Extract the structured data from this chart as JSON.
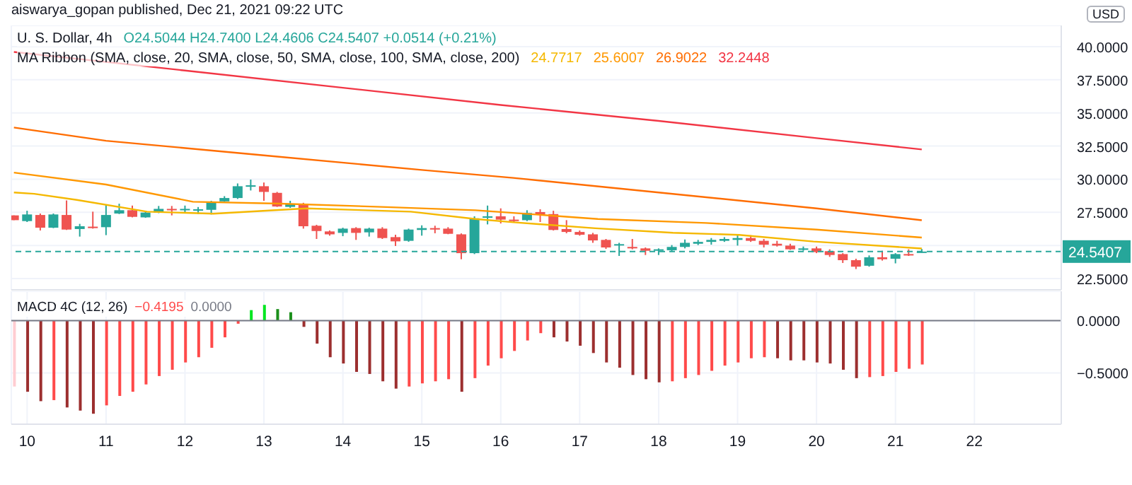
{
  "chart_data": [
    {
      "type": "candlestick",
      "title": "aiswarya_gopan published, Dec 21, 2021 09:22 UTC",
      "subtitle": "U. S. Dollar, 4h",
      "annotations": [
        "O24.5044 H24.7400 L24.4606 C24.5407 +0.0514 (+0.21%)",
        "MA Ribbon (SMA, close, 20, SMA, close, 50, SMA, close, 100, SMA, close, 200)",
        "24.7717",
        "25.6007",
        "26.9022",
        "32.2448",
        "USD"
      ],
      "x": [
        9.833,
        10,
        10.167,
        10.333,
        10.5,
        10.667,
        10.833,
        11,
        11.167,
        11.333,
        11.5,
        11.667,
        11.833,
        12,
        12.167,
        12.333,
        12.5,
        12.667,
        12.833,
        13,
        13.167,
        13.333,
        13.5,
        13.667,
        13.833,
        14,
        14.167,
        14.333,
        14.5,
        14.667,
        14.833,
        15,
        15.167,
        15.333,
        15.5,
        15.667,
        15.833,
        16,
        16.167,
        16.333,
        16.5,
        16.667,
        16.833,
        17,
        17.167,
        17.333,
        17.5,
        17.667,
        17.833,
        18,
        18.167,
        18.333,
        18.5,
        18.667,
        18.833,
        19,
        19.167,
        19.333,
        19.5,
        19.667,
        19.833,
        20,
        20.167,
        20.333,
        20.5,
        20.667,
        20.833,
        21,
        21.167,
        21.333
      ],
      "ohlc": [
        [
          27.27,
          27.27,
          26.91,
          26.91
        ],
        [
          26.84,
          27.62,
          26.77,
          27.34
        ],
        [
          27.3,
          27.41,
          26.13,
          26.34
        ],
        [
          26.34,
          27.41,
          26.31,
          27.34
        ],
        [
          27.3,
          28.4,
          26.17,
          26.2
        ],
        [
          26.24,
          26.63,
          25.67,
          26.45
        ],
        [
          26.42,
          27.55,
          26.27,
          26.31
        ],
        [
          26.38,
          28.08,
          25.78,
          27.3
        ],
        [
          27.41,
          28.15,
          27.37,
          27.66
        ],
        [
          27.66,
          28.01,
          27.12,
          27.16
        ],
        [
          27.12,
          27.62,
          27.09,
          27.48
        ],
        [
          27.48,
          27.98,
          27.44,
          27.76
        ],
        [
          27.76,
          27.98,
          27.27,
          27.66
        ],
        [
          27.69,
          28.01,
          27.44,
          27.76
        ],
        [
          27.66,
          27.9,
          27.37,
          27.73
        ],
        [
          27.69,
          28.37,
          27.34,
          28.3
        ],
        [
          28.33,
          28.72,
          28.3,
          28.58
        ],
        [
          28.58,
          29.68,
          28.51,
          29.47
        ],
        [
          29.43,
          29.97,
          29.15,
          29.54
        ],
        [
          29.47,
          29.75,
          28.37,
          29.04
        ],
        [
          28.97,
          29.04,
          27.91,
          27.94
        ],
        [
          27.91,
          28.37,
          27.84,
          28.12
        ],
        [
          28.15,
          28.22,
          26.27,
          26.45
        ],
        [
          26.49,
          26.56,
          25.49,
          26.09
        ],
        [
          26.06,
          26.13,
          25.74,
          25.84
        ],
        [
          25.95,
          26.34,
          25.7,
          26.27
        ],
        [
          26.31,
          26.38,
          25.42,
          25.95
        ],
        [
          25.99,
          26.34,
          25.67,
          26.27
        ],
        [
          26.27,
          26.38,
          25.49,
          25.56
        ],
        [
          25.63,
          25.81,
          24.96,
          25.31
        ],
        [
          25.35,
          26.27,
          25.28,
          26.2
        ],
        [
          26.17,
          26.52,
          25.74,
          26.31
        ],
        [
          26.31,
          26.49,
          25.92,
          26.2
        ],
        [
          26.27,
          26.38,
          25.85,
          25.88
        ],
        [
          25.84,
          25.91,
          23.96,
          24.42
        ],
        [
          24.42,
          27.2,
          24.35,
          27.05
        ],
        [
          27.09,
          28.01,
          26.59,
          27.2
        ],
        [
          27.2,
          27.8,
          26.66,
          26.95
        ],
        [
          26.95,
          27.2,
          26.77,
          26.84
        ],
        [
          26.91,
          27.66,
          26.84,
          27.45
        ],
        [
          27.52,
          27.73,
          26.77,
          27.34
        ],
        [
          27.37,
          27.62,
          26.13,
          26.17
        ],
        [
          26.24,
          26.91,
          25.92,
          26.02
        ],
        [
          26.02,
          26.13,
          25.74,
          25.81
        ],
        [
          25.84,
          25.95,
          25.2,
          25.38
        ],
        [
          25.42,
          25.49,
          24.74,
          24.85
        ],
        [
          25.03,
          25.2,
          24.21,
          25.1
        ],
        [
          24.89,
          25.49,
          24.71,
          24.78
        ],
        [
          24.78,
          24.85,
          24.28,
          24.6
        ],
        [
          24.6,
          24.78,
          24.28,
          24.71
        ],
        [
          24.64,
          25.03,
          24.57,
          24.89
        ],
        [
          24.89,
          25.45,
          24.78,
          25.2
        ],
        [
          25.13,
          25.42,
          25.03,
          25.27
        ],
        [
          25.27,
          25.56,
          25.06,
          25.42
        ],
        [
          25.35,
          25.63,
          25.27,
          25.49
        ],
        [
          25.42,
          25.77,
          24.99,
          25.56
        ],
        [
          25.56,
          25.77,
          25.27,
          25.35
        ],
        [
          25.35,
          25.49,
          24.85,
          25.06
        ],
        [
          25.13,
          25.35,
          24.92,
          24.99
        ],
        [
          24.99,
          25.13,
          24.67,
          24.71
        ],
        [
          24.67,
          24.92,
          24.6,
          24.78
        ],
        [
          24.78,
          24.92,
          24.42,
          24.5
        ],
        [
          24.57,
          24.71,
          24.14,
          24.28
        ],
        [
          24.35,
          24.42,
          23.68,
          23.89
        ],
        [
          23.89,
          24.0,
          23.22,
          23.4
        ],
        [
          23.47,
          24.25,
          23.4,
          24.11
        ],
        [
          24.11,
          24.6,
          23.86,
          23.96
        ],
        [
          24.0,
          24.42,
          23.65,
          24.35
        ],
        [
          24.35,
          24.71,
          24.21,
          24.28
        ],
        [
          24.5044,
          24.74,
          24.4606,
          24.5407
        ]
      ],
      "colors": [
        "#ef5350",
        "#26a69a",
        "#ef5350",
        "#26a69a",
        "#ef5350",
        "#26a69a",
        "#ef5350",
        "#26a69a",
        "#26a69a",
        "#ef5350",
        "#26a69a",
        "#26a69a",
        "#ef5350",
        "#26a69a",
        "#26a69a",
        "#26a69a",
        "#26a69a",
        "#26a69a",
        "#26a69a",
        "#ef5350",
        "#ef5350",
        "#26a69a",
        "#ef5350",
        "#ef5350",
        "#ef5350",
        "#26a69a",
        "#ef5350",
        "#26a69a",
        "#ef5350",
        "#ef5350",
        "#26a69a",
        "#26a69a",
        "#ef5350",
        "#ef5350",
        "#ef5350",
        "#26a69a",
        "#26a69a",
        "#ef5350",
        "#ef5350",
        "#26a69a",
        "#ef5350",
        "#ef5350",
        "#ef5350",
        "#ef5350",
        "#ef5350",
        "#ef5350",
        "#26a69a",
        "#ef5350",
        "#ef5350",
        "#26a69a",
        "#26a69a",
        "#26a69a",
        "#26a69a",
        "#26a69a",
        "#26a69a",
        "#26a69a",
        "#ef5350",
        "#ef5350",
        "#ef5350",
        "#ef5350",
        "#26a69a",
        "#ef5350",
        "#ef5350",
        "#ef5350",
        "#ef5350",
        "#26a69a",
        "#ef5350",
        "#26a69a",
        "#ef5350",
        "#26a69a"
      ],
      "series": [
        {
          "type": "line",
          "color": "#f5b800",
          "x": [
            9.833,
            10.09,
            10.63,
            11.52,
            12.36,
            12.95,
            13.54,
            14.86,
            15.68,
            16.16,
            17.2,
            18.18,
            19.02,
            19.96,
            21.333
          ],
          "values": [
            29.0,
            28.9,
            28.44,
            27.55,
            27.4,
            27.6,
            27.8,
            27.55,
            27.0,
            26.75,
            26.3,
            25.96,
            25.8,
            25.3,
            24.7717
          ]
        },
        {
          "type": "line",
          "color": "#ff9800",
          "x": [
            9.833,
            11,
            12.1,
            13.2,
            14.55,
            15.68,
            17.23,
            18.6,
            20,
            21.333
          ],
          "values": [
            30.5,
            29.6,
            28.3,
            28.16,
            27.9,
            27.66,
            27.0,
            26.7,
            26.2,
            25.6007
          ]
        },
        {
          "type": "line",
          "color": "#ff6d00",
          "x": [
            9.833,
            11,
            13,
            15,
            16.16,
            18,
            20,
            21.333
          ],
          "values": [
            33.9,
            32.9,
            31.8,
            30.7,
            30.1,
            29.0,
            27.8,
            26.9022
          ]
        },
        {
          "type": "line",
          "color": "#f23645",
          "x": [
            9.833,
            12,
            14,
            16,
            18,
            20,
            21.333
          ],
          "values": [
            39.6,
            38.2,
            36.9,
            35.6,
            34.4,
            33.1,
            32.2448
          ]
        }
      ],
      "xlim": [
        9.8,
        23.1
      ],
      "xticks": [
        10,
        11,
        12,
        13,
        14,
        15,
        16,
        17,
        18,
        19,
        20,
        21,
        22
      ],
      "ylim": [
        21.65,
        41.6
      ],
      "yticks": [
        {
          "value": 22.5,
          "label": "22.5000"
        },
        {
          "value": 25,
          "label": null
        },
        {
          "value": 27.5,
          "label": "27.5000"
        },
        {
          "value": 30,
          "label": "30.0000"
        },
        {
          "value": 32.5,
          "label": "32.5000"
        },
        {
          "value": 35,
          "label": "35.0000"
        },
        {
          "value": 37.5,
          "label": "37.5000"
        },
        {
          "value": 40,
          "label": "40.0000"
        }
      ],
      "tick_labels": "y",
      "grid": true,
      "ref_lines": [
        {
          "axis": "y",
          "value": 24.5407,
          "label": "24.5407",
          "color": "#26a69a",
          "line_style": "dashed"
        }
      ]
    },
    {
      "type": "bar",
      "title": "MACD 4C (12, 26)",
      "annotations": [
        "−0.4195",
        "0.0000"
      ],
      "x": [
        9.833,
        10,
        10.167,
        10.333,
        10.5,
        10.667,
        10.833,
        11,
        11.167,
        11.333,
        11.5,
        11.667,
        11.833,
        12,
        12.167,
        12.333,
        12.5,
        12.667,
        12.833,
        13,
        13.167,
        13.333,
        13.5,
        13.667,
        13.833,
        14,
        14.167,
        14.333,
        14.5,
        14.667,
        14.833,
        15,
        15.167,
        15.333,
        15.5,
        15.667,
        15.833,
        16,
        16.167,
        16.333,
        16.5,
        16.667,
        16.833,
        17,
        17.167,
        17.333,
        17.5,
        17.667,
        17.833,
        18,
        18.167,
        18.333,
        18.5,
        18.667,
        18.833,
        19,
        19.167,
        19.333,
        19.5,
        19.667,
        19.833,
        20,
        20.167,
        20.333,
        20.5,
        20.667,
        20.833,
        21,
        21.167,
        21.333
      ],
      "values": [
        -0.63,
        -0.68,
        -0.77,
        -0.76,
        -0.83,
        -0.86,
        -0.89,
        -0.81,
        -0.72,
        -0.68,
        -0.61,
        -0.53,
        -0.47,
        -0.4,
        -0.35,
        -0.26,
        -0.16,
        -0.03,
        0.1,
        0.15,
        0.11,
        0.08,
        -0.06,
        -0.22,
        -0.35,
        -0.41,
        -0.49,
        -0.51,
        -0.58,
        -0.65,
        -0.63,
        -0.6,
        -0.58,
        -0.56,
        -0.68,
        -0.55,
        -0.43,
        -0.36,
        -0.29,
        -0.19,
        -0.12,
        -0.16,
        -0.2,
        -0.24,
        -0.31,
        -0.4,
        -0.45,
        -0.52,
        -0.56,
        -0.59,
        -0.58,
        -0.55,
        -0.52,
        -0.48,
        -0.43,
        -0.4,
        -0.36,
        -0.35,
        -0.36,
        -0.38,
        -0.38,
        -0.4,
        -0.41,
        -0.47,
        -0.55,
        -0.54,
        -0.53,
        -0.49,
        -0.46,
        -0.4195
      ],
      "colors": [
        "#ffcdd2",
        "#9c2f2f",
        "#9c2f2f",
        "#ff4a4a",
        "#9c2f2f",
        "#9c2f2f",
        "#9c2f2f",
        "#ff4a4a",
        "#ff4a4a",
        "#ff4a4a",
        "#ff4a4a",
        "#ff4a4a",
        "#ff4a4a",
        "#ff4a4a",
        "#ff4a4a",
        "#ff4a4a",
        "#ff4a4a",
        "#ff4a4a",
        "#00e620",
        "#00e620",
        "#1b8f1b",
        "#1b8f1b",
        "#9c2f2f",
        "#9c2f2f",
        "#9c2f2f",
        "#9c2f2f",
        "#9c2f2f",
        "#9c2f2f",
        "#9c2f2f",
        "#9c2f2f",
        "#ff4a4a",
        "#ff4a4a",
        "#ff4a4a",
        "#ff4a4a",
        "#9c2f2f",
        "#ff4a4a",
        "#ff4a4a",
        "#ff4a4a",
        "#ff4a4a",
        "#ff4a4a",
        "#ff4a4a",
        "#9c2f2f",
        "#9c2f2f",
        "#9c2f2f",
        "#9c2f2f",
        "#9c2f2f",
        "#9c2f2f",
        "#9c2f2f",
        "#9c2f2f",
        "#9c2f2f",
        "#ff4a4a",
        "#ff4a4a",
        "#ff4a4a",
        "#ff4a4a",
        "#ff4a4a",
        "#ff4a4a",
        "#ff4a4a",
        "#ff4a4a",
        "#9c2f2f",
        "#9c2f2f",
        "#9c2f2f",
        "#9c2f2f",
        "#9c2f2f",
        "#9c2f2f",
        "#9c2f2f",
        "#ff4a4a",
        "#ff4a4a",
        "#ff4a4a",
        "#ff4a4a",
        "#ff4a4a"
      ],
      "xlim": [
        9.8,
        23.1
      ],
      "xticks": [
        10,
        11,
        12,
        13,
        14,
        15,
        16,
        17,
        18,
        19,
        20,
        21,
        22
      ],
      "ylim": [
        -0.99,
        0.28
      ],
      "yticks": [
        {
          "value": 0,
          "label": "0.0000"
        },
        {
          "value": -0.5,
          "label": "−0.5000"
        }
      ],
      "grid": true,
      "ref_lines": [
        {
          "axis": "y",
          "value": 0,
          "color": "#787b86"
        }
      ]
    }
  ]
}
